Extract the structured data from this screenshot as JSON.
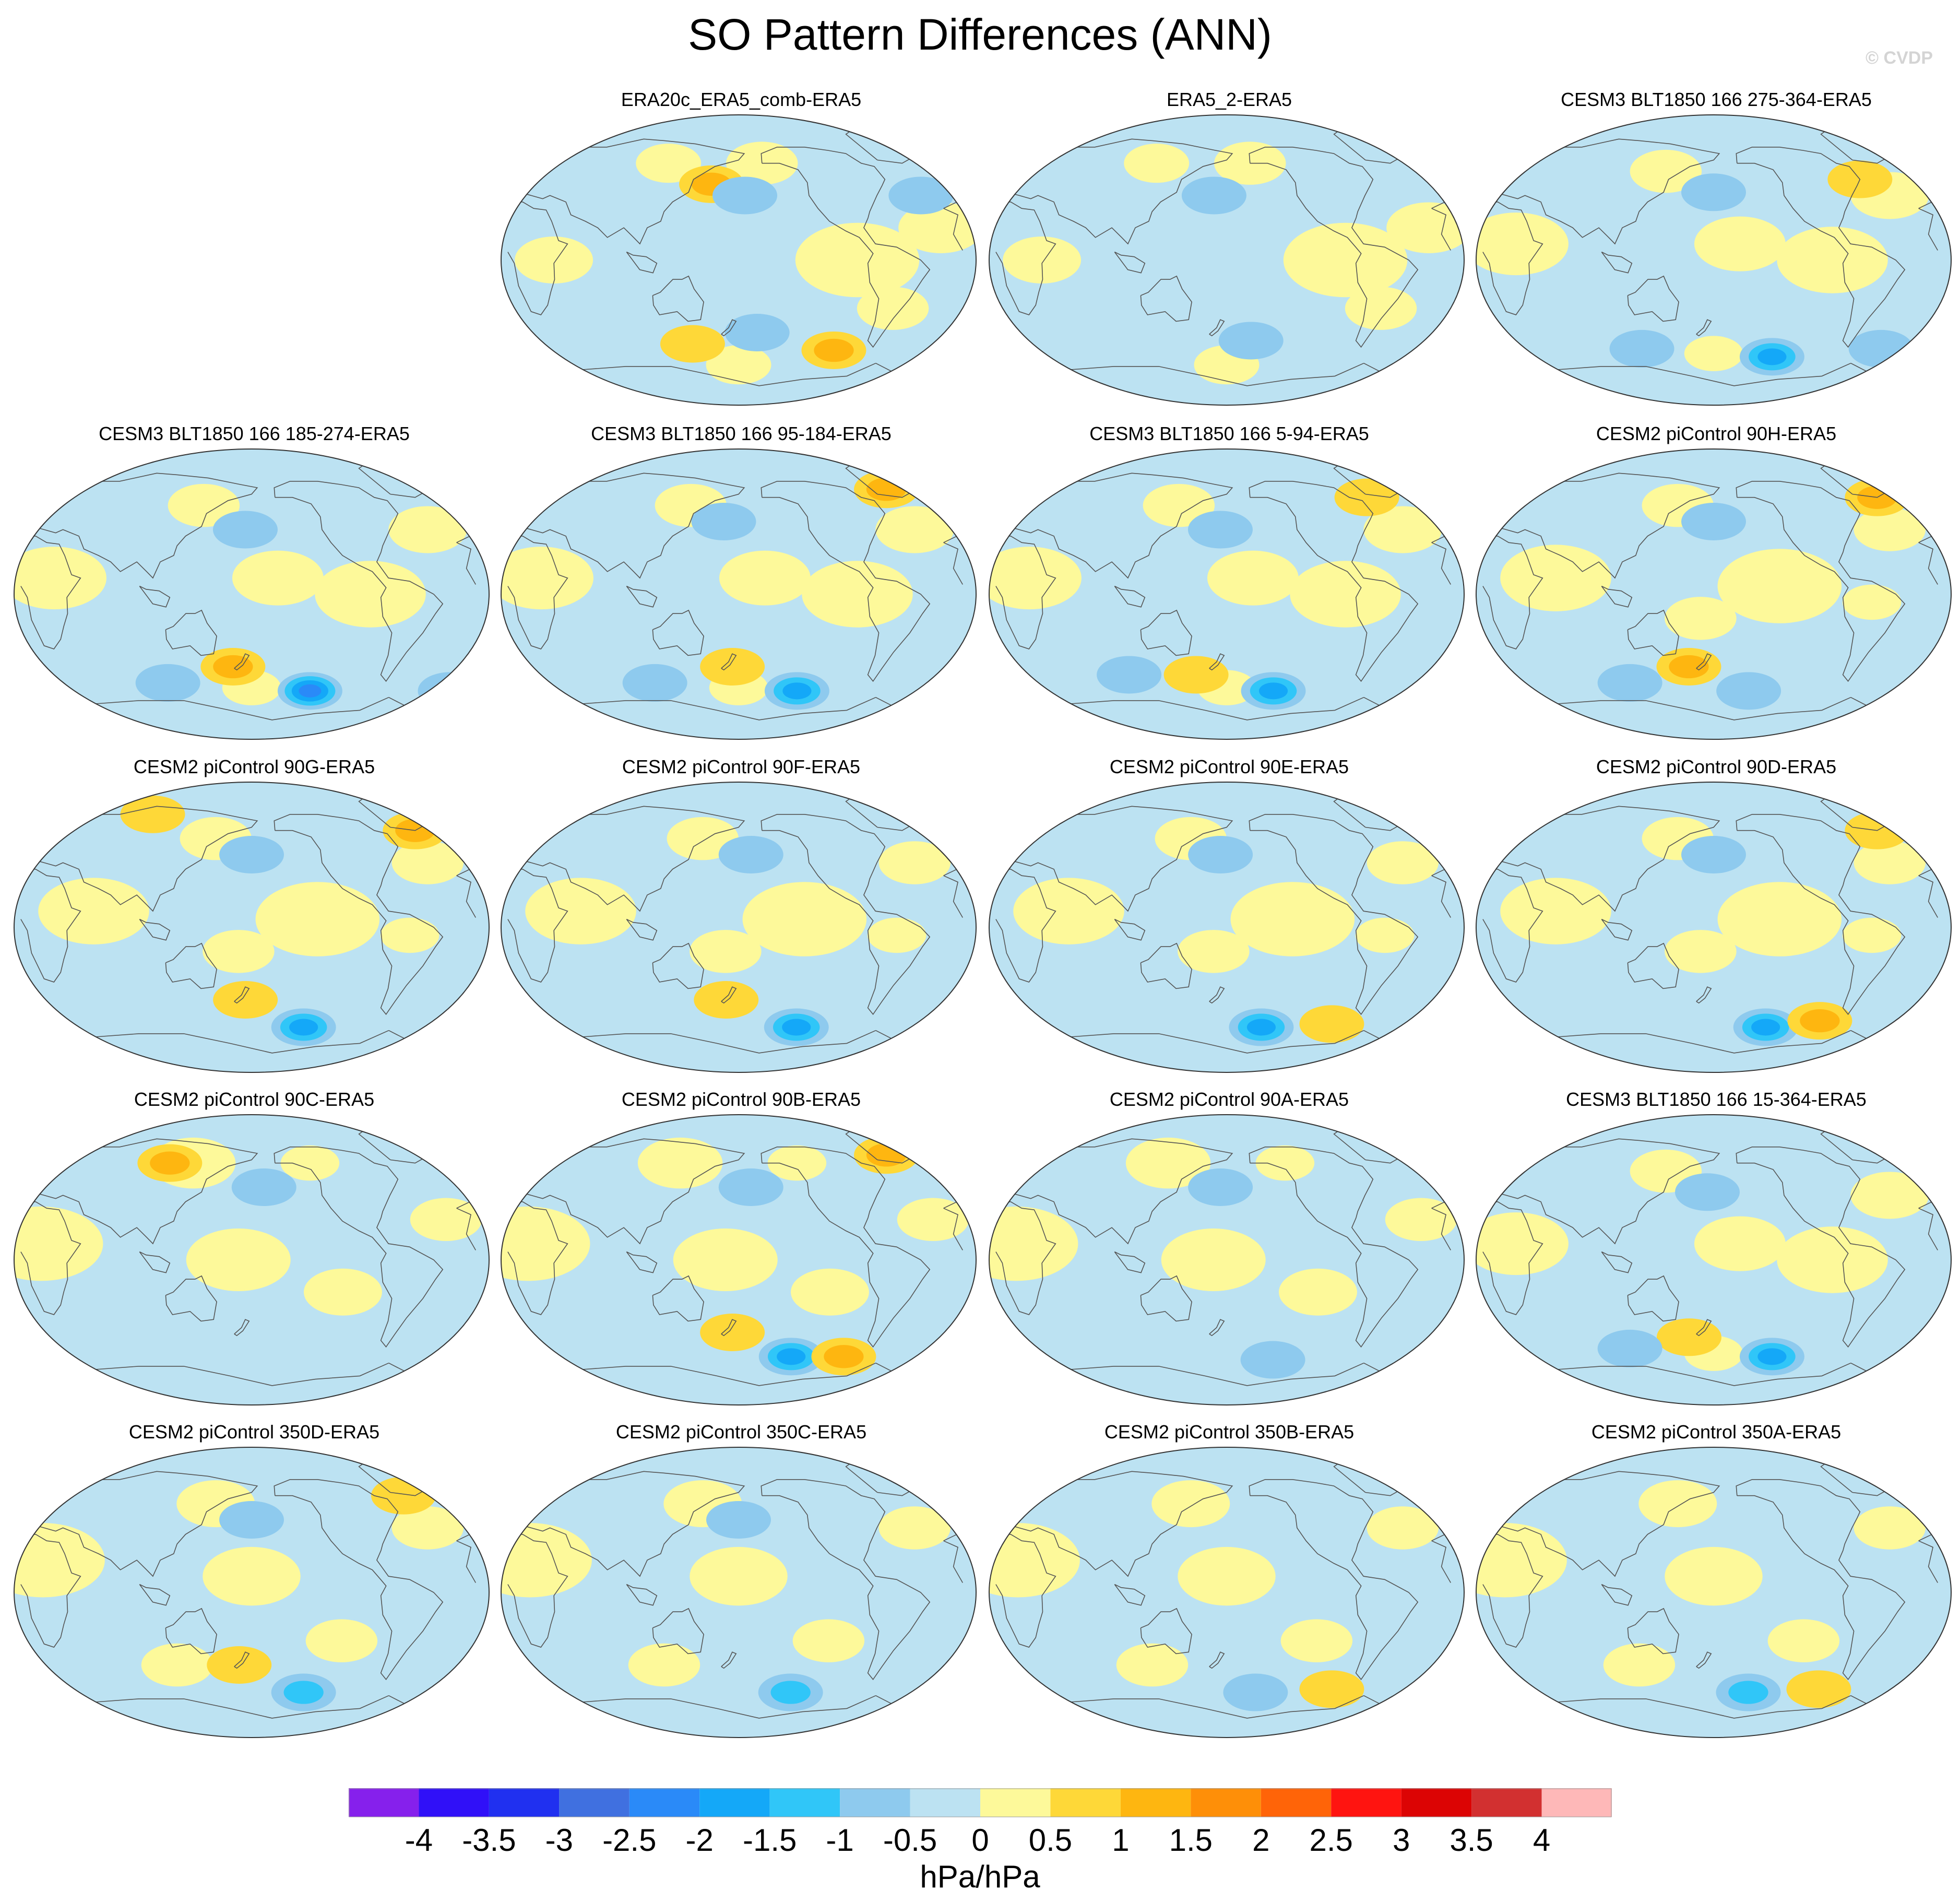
{
  "title": "SO Pattern Differences (ANN)",
  "credit": "© CVDP",
  "chart_data": {
    "type": "heatmap",
    "title": "SO Pattern Differences (ANN)",
    "projection": "Robinson global maps, centred on the Pacific",
    "panels": [
      {
        "title": "ERA20c_ERA5_comb-ERA5",
        "pattern": "n1",
        "blobs": [
          [
            158,
            47,
            1
          ],
          [
            185,
            40,
            -0.5
          ],
          [
            325,
            40,
            -0.5
          ],
          [
            142,
            -52,
            0.5
          ],
          [
            195,
            -45,
            -0.5
          ],
          [
            260,
            -56,
            1
          ]
        ]
      },
      {
        "title": "ERA5_2-ERA5",
        "pattern": "n1",
        "blobs": [
          [
            170,
            40,
            -0.5
          ],
          [
            200,
            -50,
            -0.5
          ]
        ]
      },
      {
        "title": "CESM3 BLT1850 166 275-364-ERA5",
        "pattern": "n2",
        "blobs": [
          [
            180,
            42,
            -0.5
          ],
          [
            300,
            50,
            0.5
          ],
          [
            230,
            -60,
            -1.5
          ],
          [
            120,
            -55,
            -0.5
          ],
          [
            320,
            -55,
            -0.5
          ]
        ]
      },
      {
        "title": "CESM3 BLT1850 166 185-274-ERA5",
        "pattern": "n2",
        "blobs": [
          [
            175,
            40,
            -0.5
          ],
          [
            165,
            -45,
            1
          ],
          [
            230,
            -60,
            -2
          ],
          [
            110,
            -55,
            -0.5
          ],
          [
            350,
            -60,
            -0.5
          ]
        ]
      },
      {
        "title": "CESM3 BLT1850 166 95-184-ERA5",
        "pattern": "n2",
        "blobs": [
          [
            168,
            45,
            -0.5
          ],
          [
            310,
            65,
            1
          ],
          [
            175,
            -45,
            0.5
          ],
          [
            230,
            -60,
            -1.5
          ],
          [
            110,
            -55,
            -0.5
          ]
        ]
      },
      {
        "title": "CESM3 BLT1850 166 5-94-ERA5",
        "pattern": "n2",
        "blobs": [
          [
            175,
            40,
            -0.5
          ],
          [
            300,
            60,
            0.5
          ],
          [
            155,
            -50,
            0.5
          ],
          [
            220,
            -60,
            -1.5
          ],
          [
            100,
            -50,
            -0.5
          ]
        ]
      },
      {
        "title": "CESM2 piControl 90H-ERA5",
        "pattern": "n3",
        "blobs": [
          [
            180,
            45,
            -0.5
          ],
          [
            320,
            60,
            1
          ],
          [
            160,
            -45,
            1
          ],
          [
            210,
            -60,
            -0.5
          ],
          [
            110,
            -55,
            -0.5
          ]
        ]
      },
      {
        "title": "CESM2 piControl 90G-ERA5",
        "pattern": "n3",
        "blobs": [
          [
            180,
            45,
            -0.5
          ],
          [
            90,
            70,
            0.5
          ],
          [
            320,
            60,
            1
          ],
          [
            175,
            -45,
            0.5
          ],
          [
            225,
            -62,
            -1.5
          ]
        ]
      },
      {
        "title": "CESM2 piControl 90F-ERA5",
        "pattern": "n3",
        "blobs": [
          [
            190,
            45,
            -0.5
          ],
          [
            170,
            -45,
            0.5
          ],
          [
            230,
            -62,
            -1.5
          ]
        ]
      },
      {
        "title": "CESM2 piControl 90E-ERA5",
        "pattern": "n3",
        "blobs": [
          [
            175,
            45,
            -0.5
          ],
          [
            210,
            -62,
            -1.5
          ],
          [
            270,
            -60,
            0.5
          ]
        ]
      },
      {
        "title": "CESM2 piControl 90D-ERA5",
        "pattern": "n3",
        "blobs": [
          [
            180,
            45,
            -0.5
          ],
          [
            320,
            60,
            0.5
          ],
          [
            225,
            -62,
            -1.5
          ],
          [
            270,
            -58,
            1
          ]
        ]
      },
      {
        "title": "CESM2 piControl 90C-ERA5",
        "pattern": "n4",
        "blobs": [
          [
            190,
            45,
            -0.5
          ],
          [
            110,
            60,
            1
          ]
        ]
      },
      {
        "title": "CESM2 piControl 90B-ERA5",
        "pattern": "n4",
        "blobs": [
          [
            190,
            45,
            -0.5
          ],
          [
            310,
            65,
            1
          ],
          [
            175,
            -45,
            0.5
          ],
          [
            225,
            -60,
            -1.5
          ],
          [
            270,
            -60,
            1
          ]
        ]
      },
      {
        "title": "CESM2 piControl 90A-ERA5",
        "pattern": "n4",
        "blobs": [
          [
            175,
            45,
            -0.5
          ],
          [
            220,
            -62,
            -0.5
          ]
        ]
      },
      {
        "title": "CESM3 BLT1850 166 15-364-ERA5",
        "pattern": "n2",
        "blobs": [
          [
            175,
            42,
            -0.5
          ],
          [
            160,
            -48,
            0.5
          ],
          [
            230,
            -60,
            -1.5
          ],
          [
            110,
            -55,
            -0.5
          ]
        ]
      },
      {
        "title": "CESM2 piControl 350D-ERA5",
        "pattern": "n5",
        "blobs": [
          [
            180,
            45,
            -0.5
          ],
          [
            310,
            60,
            0.5
          ],
          [
            170,
            -45,
            0.5
          ],
          [
            225,
            -62,
            -1
          ]
        ]
      },
      {
        "title": "CESM2 piControl 350C-ERA5",
        "pattern": "n5",
        "blobs": [
          [
            180,
            45,
            -0.5
          ],
          [
            225,
            -62,
            -1
          ]
        ]
      },
      {
        "title": "CESM2 piControl 350B-ERA5",
        "pattern": "n5",
        "blobs": [
          [
            205,
            -62,
            -0.5
          ],
          [
            270,
            -60,
            0.5
          ]
        ]
      },
      {
        "title": "CESM2 piControl 350A-ERA5",
        "pattern": "n5",
        "blobs": [
          [
            210,
            -62,
            -1
          ],
          [
            270,
            -60,
            0.5
          ]
        ]
      }
    ],
    "colorbar": {
      "levels": [
        "-4",
        "-3.5",
        "-3",
        "-2.5",
        "-2",
        "-1.5",
        "-1",
        "-0.5",
        "0",
        "0.5",
        "1",
        "1.5",
        "2",
        "2.5",
        "3",
        "3.5",
        "4"
      ],
      "colors": [
        "#8620ec",
        "#3010f8",
        "#2030f0",
        "#4070e0",
        "#2a8af8",
        "#14a8f8",
        "#30c6f8",
        "#8ecaee",
        "#bce2f2",
        "#fdf99a",
        "#fed838",
        "#feb610",
        "#fe8f08",
        "#ff6408",
        "#ff1410",
        "#dc0404",
        "#d23030",
        "#feb8b8"
      ],
      "unit": "hPa/hPa"
    }
  }
}
